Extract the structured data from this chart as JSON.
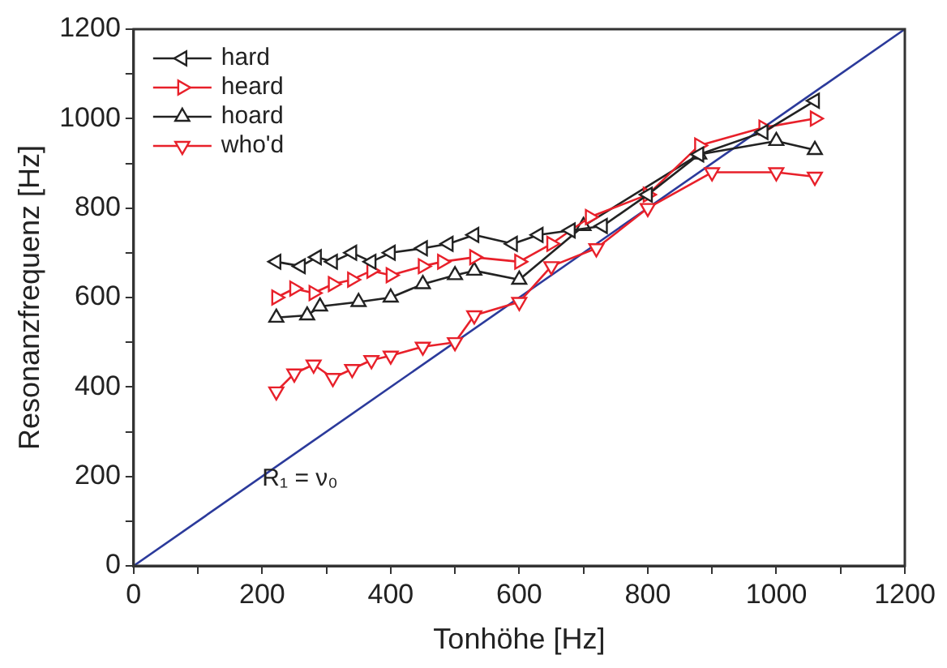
{
  "chart_data": {
    "type": "line",
    "xlabel": "Tonhöhe [Hz]",
    "ylabel": "Resonanzfrequenz [Hz]",
    "xlim": [
      0,
      1200
    ],
    "ylim": [
      0,
      1200
    ],
    "xticks": [
      0,
      {
        "value": 100,
        "label": null
      },
      200,
      {
        "value": 300,
        "label": null
      },
      400,
      {
        "value": 500,
        "label": null
      },
      600,
      {
        "value": 700,
        "label": null
      },
      800,
      {
        "value": 900,
        "label": null
      },
      1000,
      {
        "value": 1100,
        "label": null
      },
      1200
    ],
    "yticks": [
      0,
      {
        "value": 100,
        "label": null
      },
      200,
      {
        "value": 300,
        "label": null
      },
      400,
      {
        "value": 500,
        "label": null
      },
      600,
      {
        "value": 700,
        "label": null
      },
      800,
      {
        "value": 900,
        "label": null
      },
      1000,
      {
        "value": 1100,
        "label": null
      },
      1200
    ],
    "grid": false,
    "legend": "top left",
    "line_style": "solid",
    "annotations": [
      {
        "text": "R₁ = ν₀",
        "x": 200,
        "y": 180
      }
    ],
    "series": [
      {
        "name": "hard",
        "color": "#222222",
        "marker": "triangle-left",
        "x": [
          222,
          260,
          285,
          310,
          340,
          370,
          400,
          450,
          490,
          530,
          590,
          630,
          680,
          730,
          800,
          880,
          980,
          1060
        ],
        "values": [
          680,
          670,
          690,
          680,
          700,
          680,
          700,
          710,
          720,
          740,
          720,
          740,
          750,
          760,
          830,
          920,
          970,
          1040
        ]
      },
      {
        "name": "heard",
        "color": "#e8202a",
        "marker": "triangle-right",
        "x": [
          222,
          250,
          280,
          310,
          340,
          370,
          400,
          450,
          480,
          530,
          600,
          650,
          710,
          800,
          880,
          980,
          1060
        ],
        "values": [
          600,
          620,
          610,
          630,
          640,
          660,
          650,
          670,
          680,
          690,
          680,
          720,
          780,
          830,
          940,
          980,
          1000
        ]
      },
      {
        "name": "hoard",
        "color": "#222222",
        "marker": "triangle",
        "x": [
          222,
          270,
          290,
          350,
          400,
          450,
          500,
          530,
          600,
          700,
          880,
          1000,
          1060
        ],
        "values": [
          555,
          560,
          580,
          590,
          600,
          630,
          650,
          660,
          640,
          760,
          920,
          950,
          930
        ]
      },
      {
        "name": "who'd",
        "color": "#e8202a",
        "marker": "triangle-down",
        "x": [
          222,
          250,
          280,
          310,
          340,
          370,
          400,
          450,
          500,
          530,
          600,
          650,
          720,
          800,
          900,
          1000,
          1060
        ],
        "values": [
          390,
          430,
          450,
          420,
          440,
          460,
          470,
          490,
          500,
          560,
          590,
          670,
          710,
          800,
          880,
          880,
          870
        ]
      },
      {
        "color": "#2b3a9b",
        "marker": "none",
        "x": [
          0,
          1200
        ],
        "values": [
          0,
          1200
        ]
      }
    ]
  }
}
